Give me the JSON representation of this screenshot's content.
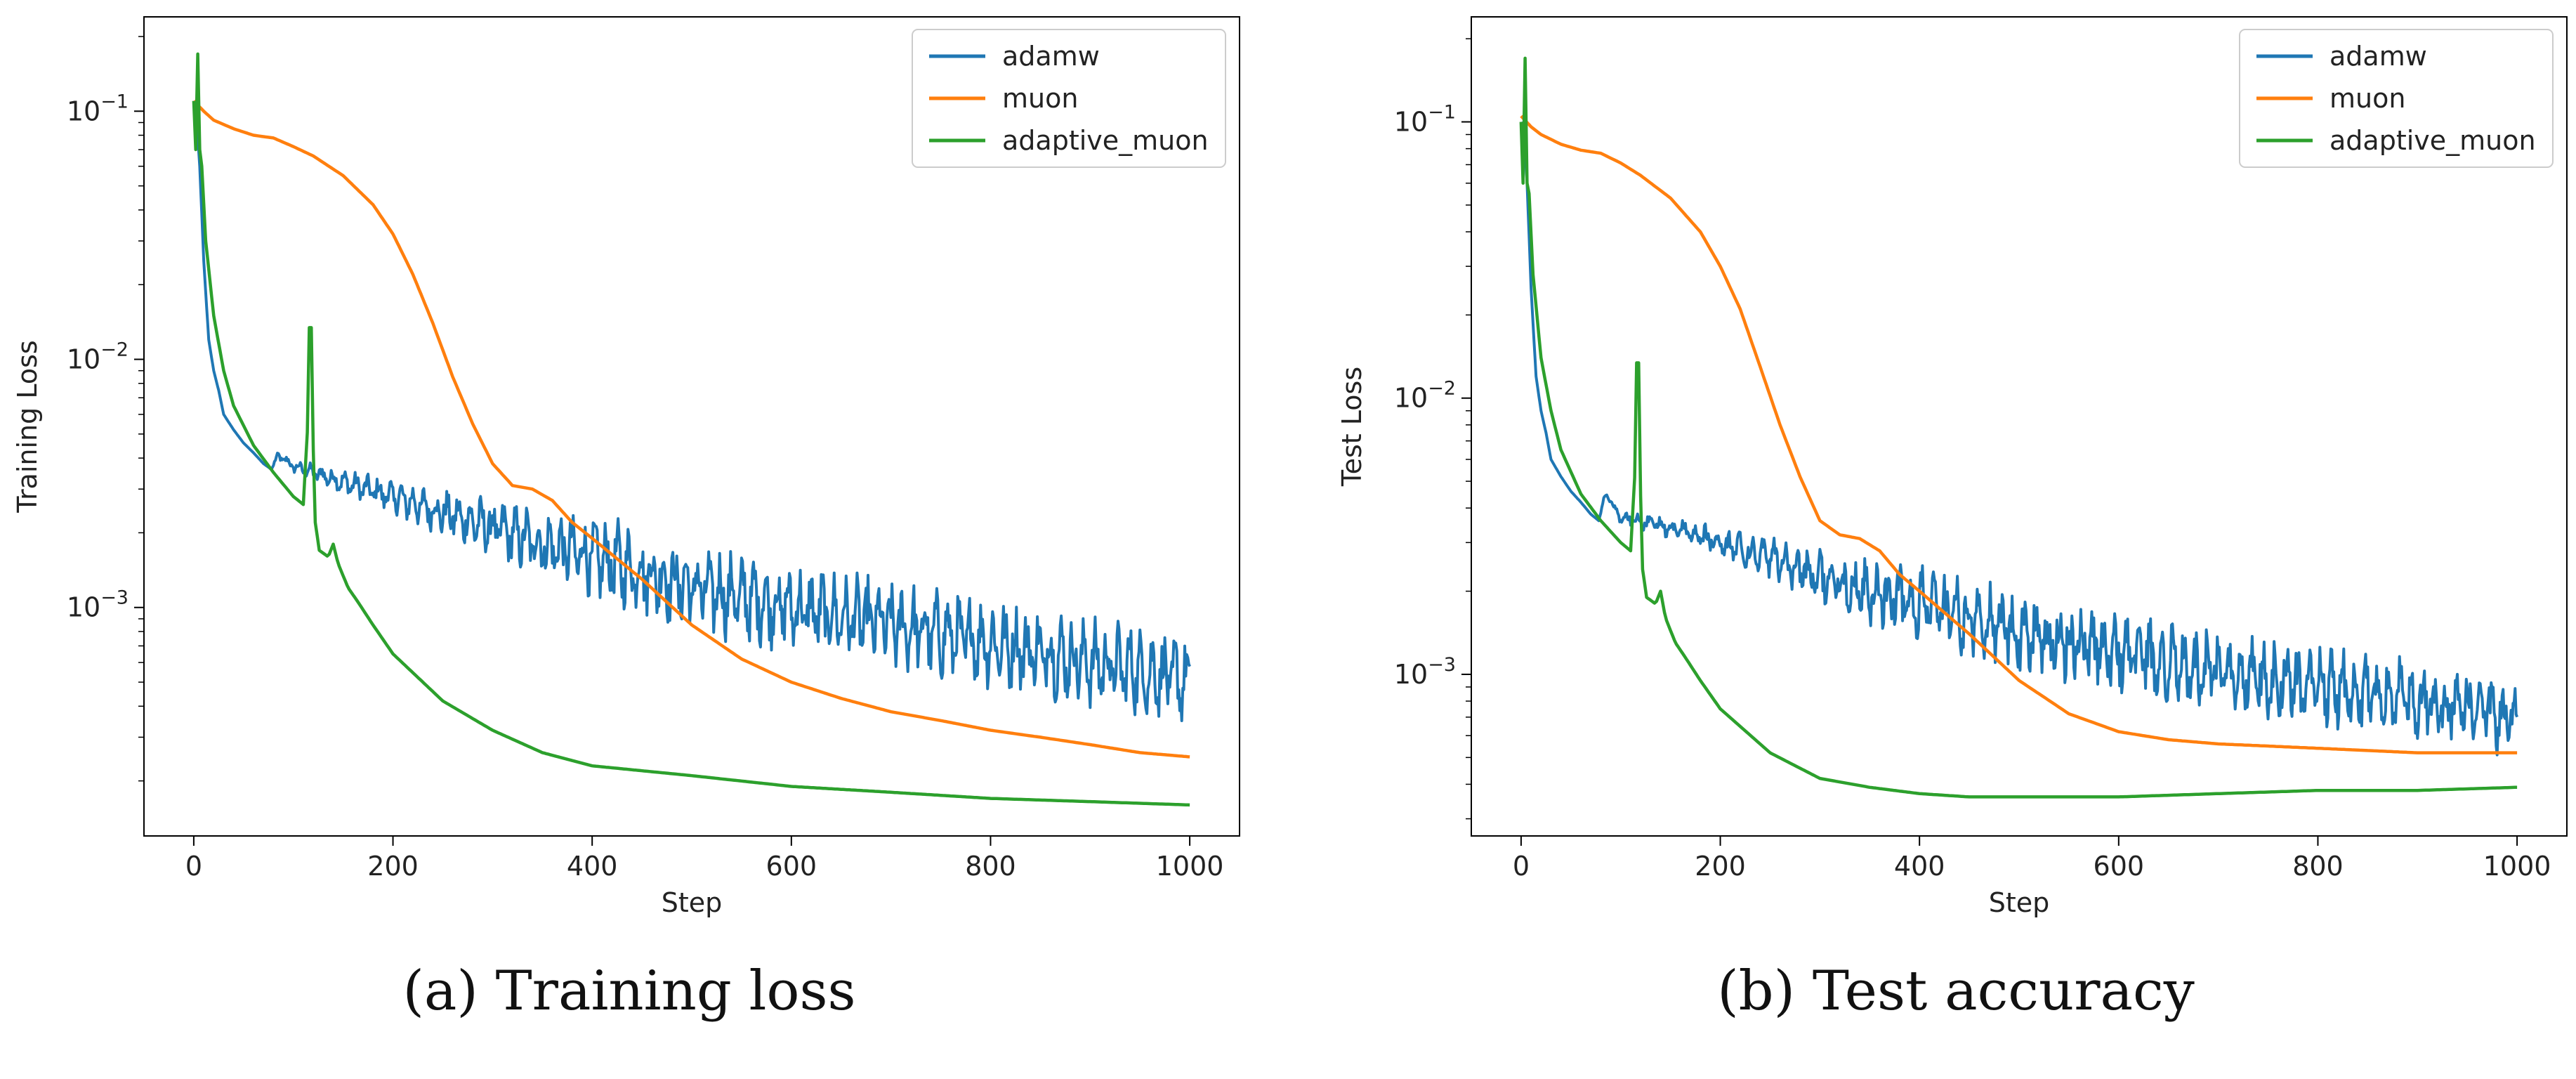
{
  "chart_data": [
    {
      "type": "line",
      "caption": "(a) Training loss",
      "xlabel": "Step",
      "ylabel": "Training Loss",
      "yscale": "log",
      "xlim": [
        -50,
        1050
      ],
      "ylim": [
        0.00012,
        0.24
      ],
      "xticks": [
        0,
        200,
        400,
        600,
        800,
        1000
      ],
      "yticks": [
        {
          "base": "10",
          "exp": "−3",
          "value": 0.001
        },
        {
          "base": "10",
          "exp": "−2",
          "value": 0.01
        },
        {
          "base": "10",
          "exp": "−1",
          "value": 0.1
        }
      ],
      "legend_position": "top-right",
      "grid": false,
      "series": [
        {
          "name": "adamw",
          "color": "#1f77b4",
          "noise": 0.5,
          "x": [
            0,
            3,
            6,
            10,
            15,
            20,
            25,
            30,
            40,
            50,
            60,
            70,
            78,
            85,
            100,
            120,
            150,
            200,
            250,
            300,
            350,
            400,
            450,
            500,
            550,
            600,
            650,
            700,
            750,
            800,
            850,
            900,
            950,
            1000
          ],
          "y": [
            0.11,
            0.09,
            0.06,
            0.025,
            0.012,
            0.009,
            0.0075,
            0.006,
            0.0052,
            0.0046,
            0.0042,
            0.0038,
            0.0036,
            0.0041,
            0.0037,
            0.0035,
            0.0032,
            0.0028,
            0.0024,
            0.0021,
            0.0018,
            0.0016,
            0.0014,
            0.0012,
            0.0011,
            0.001,
            0.00092,
            0.00085,
            0.00078,
            0.00072,
            0.00066,
            0.0006,
            0.00056,
            0.0005
          ]
        },
        {
          "name": "muon",
          "color": "#ff7f0e",
          "noise": 0.0,
          "x": [
            0,
            10,
            20,
            40,
            60,
            80,
            100,
            120,
            150,
            180,
            200,
            220,
            240,
            260,
            280,
            300,
            320,
            340,
            360,
            380,
            400,
            450,
            500,
            550,
            600,
            650,
            700,
            750,
            800,
            850,
            900,
            950,
            1000
          ],
          "y": [
            0.11,
            0.1,
            0.092,
            0.085,
            0.08,
            0.078,
            0.072,
            0.066,
            0.055,
            0.042,
            0.032,
            0.022,
            0.014,
            0.0085,
            0.0055,
            0.0038,
            0.0031,
            0.003,
            0.0027,
            0.0022,
            0.0019,
            0.0013,
            0.00085,
            0.00062,
            0.0005,
            0.00043,
            0.00038,
            0.00035,
            0.00032,
            0.0003,
            0.00028,
            0.00026,
            0.00025
          ]
        },
        {
          "name": "adaptive_muon",
          "color": "#2ca02c",
          "noise": 0.0,
          "x": [
            0,
            2,
            4,
            6,
            8,
            12,
            20,
            30,
            40,
            60,
            80,
            100,
            110,
            115,
            117,
            119,
            122,
            126,
            135,
            140,
            145,
            155,
            165,
            180,
            200,
            250,
            300,
            350,
            400,
            500,
            600,
            700,
            800,
            900,
            1000
          ],
          "y": [
            0.11,
            0.07,
            0.17,
            0.07,
            0.06,
            0.03,
            0.015,
            0.009,
            0.0065,
            0.0045,
            0.0035,
            0.0028,
            0.0026,
            0.006,
            0.03,
            0.006,
            0.0022,
            0.0017,
            0.0016,
            0.0018,
            0.0015,
            0.0012,
            0.00105,
            0.00085,
            0.00065,
            0.00042,
            0.00032,
            0.00026,
            0.00023,
            0.00021,
            0.00019,
            0.00018,
            0.00017,
            0.000165,
            0.00016
          ]
        }
      ]
    },
    {
      "type": "line",
      "caption": "(b) Test accuracy",
      "xlabel": "Step",
      "ylabel": "Test Loss",
      "yscale": "log",
      "xlim": [
        -50,
        1050
      ],
      "ylim": [
        0.00026,
        0.24
      ],
      "xticks": [
        0,
        200,
        400,
        600,
        800,
        1000
      ],
      "yticks": [
        {
          "base": "10",
          "exp": "−3",
          "value": 0.001
        },
        {
          "base": "10",
          "exp": "−2",
          "value": 0.01
        },
        {
          "base": "10",
          "exp": "−1",
          "value": 0.1
        }
      ],
      "legend_position": "top-right",
      "grid": false,
      "series": [
        {
          "name": "adamw",
          "color": "#1f77b4",
          "noise": 0.4,
          "x": [
            0,
            3,
            6,
            10,
            15,
            20,
            25,
            30,
            40,
            50,
            60,
            70,
            78,
            85,
            100,
            120,
            150,
            200,
            250,
            300,
            350,
            400,
            450,
            500,
            550,
            600,
            650,
            700,
            750,
            800,
            850,
            900,
            950,
            1000
          ],
          "y": [
            0.1,
            0.09,
            0.06,
            0.025,
            0.012,
            0.009,
            0.0075,
            0.006,
            0.0052,
            0.0046,
            0.0042,
            0.0038,
            0.0036,
            0.0045,
            0.0037,
            0.0036,
            0.0034,
            0.003,
            0.0026,
            0.0023,
            0.002,
            0.0018,
            0.0016,
            0.0014,
            0.0013,
            0.0012,
            0.0011,
            0.001,
            0.00095,
            0.0009,
            0.00085,
            0.0008,
            0.00075,
            0.0007
          ]
        },
        {
          "name": "muon",
          "color": "#ff7f0e",
          "noise": 0.0,
          "x": [
            0,
            10,
            20,
            40,
            60,
            80,
            100,
            120,
            150,
            180,
            200,
            220,
            240,
            260,
            280,
            300,
            320,
            340,
            360,
            380,
            400,
            450,
            500,
            550,
            600,
            650,
            700,
            750,
            800,
            850,
            900,
            950,
            1000
          ],
          "y": [
            0.105,
            0.096,
            0.09,
            0.083,
            0.079,
            0.077,
            0.071,
            0.064,
            0.053,
            0.04,
            0.03,
            0.021,
            0.013,
            0.008,
            0.0052,
            0.0036,
            0.0032,
            0.0031,
            0.0028,
            0.0023,
            0.002,
            0.0014,
            0.00095,
            0.00072,
            0.00062,
            0.00058,
            0.00056,
            0.00055,
            0.00054,
            0.00053,
            0.00052,
            0.00052,
            0.00052
          ]
        },
        {
          "name": "adaptive_muon",
          "color": "#2ca02c",
          "noise": 0.0,
          "x": [
            0,
            2,
            4,
            6,
            8,
            12,
            20,
            30,
            40,
            60,
            80,
            100,
            110,
            115,
            117,
            119,
            122,
            126,
            135,
            140,
            145,
            155,
            165,
            180,
            200,
            250,
            300,
            350,
            400,
            450,
            500,
            600,
            700,
            800,
            900,
            1000
          ],
          "y": [
            0.1,
            0.06,
            0.17,
            0.06,
            0.055,
            0.028,
            0.014,
            0.009,
            0.0065,
            0.0045,
            0.0036,
            0.003,
            0.0028,
            0.006,
            0.03,
            0.006,
            0.0024,
            0.0019,
            0.0018,
            0.002,
            0.0016,
            0.0013,
            0.00115,
            0.00095,
            0.00075,
            0.00052,
            0.00042,
            0.00039,
            0.00037,
            0.00036,
            0.00036,
            0.00036,
            0.00037,
            0.00038,
            0.00038,
            0.00039
          ]
        }
      ]
    }
  ]
}
